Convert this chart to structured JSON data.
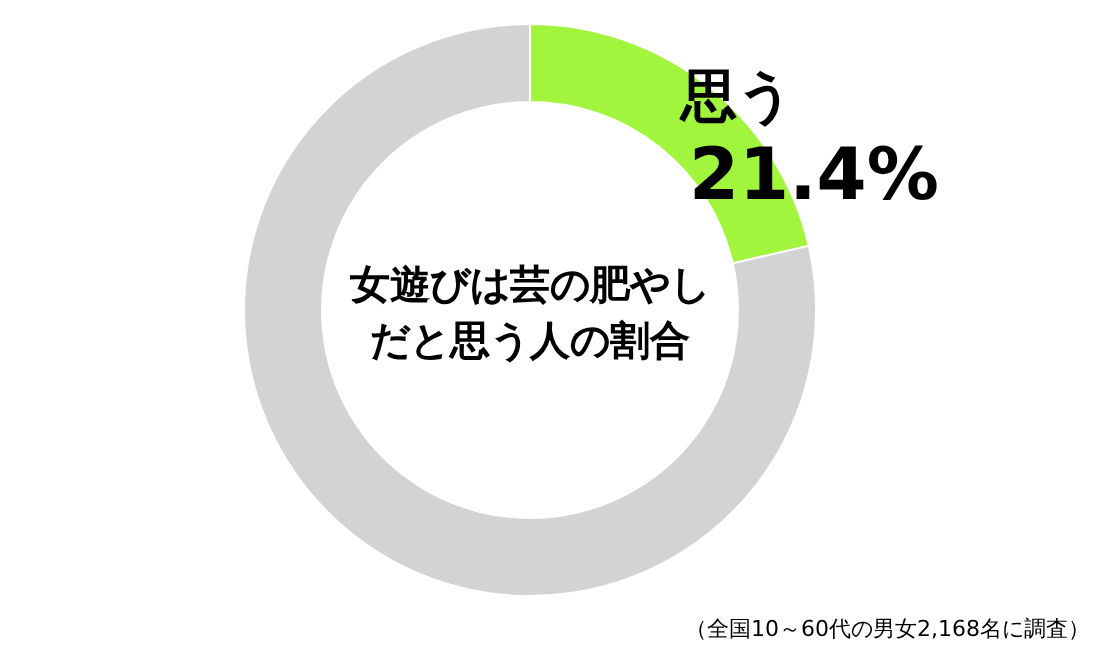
{
  "chart_data": {
    "type": "donut",
    "title": "女遊びは芸の肥やしだと思う人の割合",
    "categories": [
      "思う",
      null
    ],
    "values": [
      21.4,
      78.6
    ],
    "value_labels": [
      "21.4%",
      null
    ],
    "colors": [
      "#a2f53d",
      "#d3d3d3"
    ],
    "annotations": [
      "（全国10～60代の男女2,168名に調査）"
    ]
  }
}
